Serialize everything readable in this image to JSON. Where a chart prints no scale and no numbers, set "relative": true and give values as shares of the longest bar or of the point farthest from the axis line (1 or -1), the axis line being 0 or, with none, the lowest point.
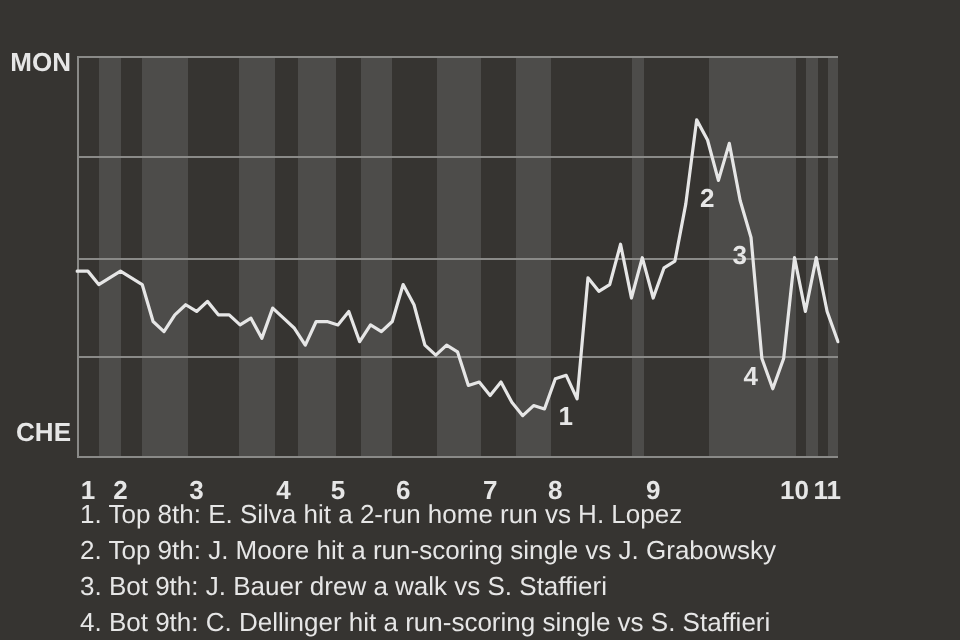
{
  "chart_data": {
    "type": "line",
    "relative": true,
    "categories": [
      null,
      "1",
      null,
      null,
      "2",
      null,
      null,
      null,
      null,
      null,
      null,
      "3",
      null,
      null,
      null,
      null,
      null,
      null,
      null,
      "4",
      null,
      null,
      null,
      null,
      "5",
      null,
      null,
      null,
      null,
      null,
      "6",
      null,
      null,
      null,
      null,
      null,
      null,
      null,
      "7",
      null,
      null,
      null,
      null,
      null,
      "8",
      null,
      null,
      null,
      null,
      null,
      null,
      null,
      null,
      "9",
      null,
      null,
      null,
      null,
      null,
      null,
      null,
      null,
      null,
      null,
      null,
      null,
      "10",
      null,
      null,
      "11",
      null
    ],
    "series": [
      {
        "color": "#e6e6e6",
        "values": [
          0.55,
          0.55,
          0.51,
          0.53,
          0.55,
          0.53,
          0.51,
          0.4,
          0.37,
          0.42,
          0.45,
          0.43,
          0.46,
          0.42,
          0.42,
          0.39,
          0.41,
          0.35,
          0.44,
          0.41,
          0.38,
          0.33,
          0.4,
          0.4,
          0.39,
          0.43,
          0.34,
          0.39,
          0.37,
          0.4,
          0.51,
          0.45,
          0.33,
          0.3,
          0.33,
          0.31,
          0.21,
          0.22,
          0.18,
          0.22,
          0.16,
          0.12,
          0.15,
          0.14,
          0.23,
          0.24,
          0.17,
          0.53,
          0.49,
          0.51,
          0.63,
          0.47,
          0.59,
          0.47,
          0.56,
          0.58,
          0.75,
          1,
          0.94,
          0.82,
          0.93,
          0.76,
          0.65,
          0.29,
          0.2,
          0.29,
          0.59,
          0.43,
          0.59,
          0.43,
          0.34
        ]
      }
    ],
    "marker": "none",
    "ref_lines": [
      {
        "axis": "y",
        "value": 0,
        "label": "CHE",
        "color": "#8a8a88"
      },
      {
        "axis": "y",
        "value": 0.3,
        "color": "#8a8a88"
      },
      {
        "axis": "y",
        "value": 0.59,
        "color": "#8a8a88"
      },
      {
        "axis": "y",
        "value": 0.89,
        "color": "#8a8a88"
      },
      {
        "axis": "y",
        "value": 1.19,
        "label": "MON",
        "color": "#8a8a88"
      }
    ],
    "annotations": [
      {
        "text": "1",
        "y": 0.17
      },
      {
        "text": "2",
        "y": 0.82
      },
      {
        "text": "3",
        "y": 0.65
      },
      {
        "text": "4",
        "y": 0.29
      },
      "1. Top 8th: E. Silva hit a 2-run home run vs H. Lopez",
      "2. Top 9th: J. Moore hit a run-scoring single vs J. Grabowsky",
      "3. Bot 9th: J. Bauer drew a walk vs S. Staffieri",
      "4. Bot 9th: C. Dellinger hit a run-scoring single vs S. Staffieri"
    ]
  }
}
